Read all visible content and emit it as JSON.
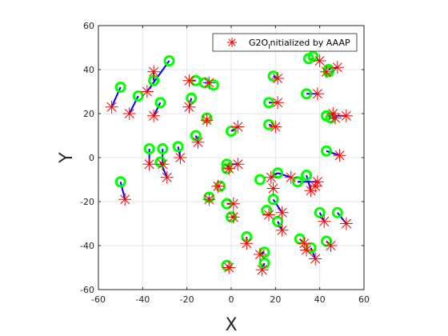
{
  "chart_data": {
    "type": "scatter",
    "xlabel": "X",
    "ylabel": "Y",
    "xlim": [
      -60,
      60
    ],
    "ylim": [
      -60,
      60
    ],
    "xticks": [
      -60,
      -40,
      -20,
      0,
      20,
      40,
      60
    ],
    "yticks": [
      -60,
      -40,
      -20,
      0,
      20,
      40,
      60
    ],
    "grid": true,
    "legend_placement": "top-right",
    "legend": [
      {
        "main": "G2O",
        "sub": "I",
        "rest": "nitialized by AAAP",
        "marker": "red-asterisk"
      }
    ],
    "colors": {
      "initialized": "#ff0000",
      "optimized": "#00ff00",
      "link": "#0000ff",
      "grid": "#e6e6e6",
      "axis": "#262626"
    },
    "series": [
      {
        "name": "G2O Initialized by AAAP",
        "marker": "asterisk",
        "points": [
          [
            -54,
            23
          ],
          [
            -46,
            20
          ],
          [
            -38,
            30
          ],
          [
            -35,
            39
          ],
          [
            -35,
            19
          ],
          [
            -37,
            -3
          ],
          [
            -31,
            -3
          ],
          [
            -29,
            -9
          ],
          [
            -23,
            0
          ],
          [
            -19,
            35
          ],
          [
            -19,
            23
          ],
          [
            -15,
            7
          ],
          [
            -10,
            34
          ],
          [
            -11,
            17
          ],
          [
            -10,
            -19
          ],
          [
            -6,
            -13
          ],
          [
            -1,
            -5
          ],
          [
            3,
            -3
          ],
          [
            3,
            14
          ],
          [
            1,
            -21
          ],
          [
            1,
            -27
          ],
          [
            7,
            -39
          ],
          [
            14,
            -51
          ],
          [
            -1,
            -50
          ],
          [
            13,
            -44
          ],
          [
            21,
            25
          ],
          [
            20,
            14
          ],
          [
            21,
            36
          ],
          [
            18,
            -9
          ],
          [
            27,
            -9
          ],
          [
            23,
            -25
          ],
          [
            23,
            -33
          ],
          [
            36,
            -15
          ],
          [
            38,
            -13
          ],
          [
            39,
            -11
          ],
          [
            39,
            29
          ],
          [
            40,
            44
          ],
          [
            33,
            -39
          ],
          [
            38,
            -46
          ],
          [
            42,
            -29
          ],
          [
            45,
            -40
          ],
          [
            47,
            18
          ],
          [
            46,
            20
          ],
          [
            48,
            41
          ],
          [
            49,
            1
          ],
          [
            52,
            19
          ],
          [
            52,
            -30
          ],
          [
            -48,
            -19
          ],
          [
            19,
            -14
          ],
          [
            34,
            -42
          ],
          [
            43,
            39
          ],
          [
            17,
            -26
          ]
        ]
      },
      {
        "name": "",
        "marker": "circle",
        "points": [
          [
            -50,
            32
          ],
          [
            -42,
            28
          ],
          [
            -37,
            4
          ],
          [
            -35,
            35
          ],
          [
            -32,
            25
          ],
          [
            -31,
            4
          ],
          [
            -28,
            44
          ],
          [
            -32,
            -2
          ],
          [
            -24,
            5
          ],
          [
            -18,
            27
          ],
          [
            -16,
            35
          ],
          [
            -16,
            10
          ],
          [
            -11,
            18
          ],
          [
            -12,
            34
          ],
          [
            -8,
            33
          ],
          [
            -10,
            -18
          ],
          [
            -5,
            -13
          ],
          [
            -2,
            -3
          ],
          [
            -2,
            -21
          ],
          [
            -2,
            -5
          ],
          [
            0,
            12
          ],
          [
            0,
            -27
          ],
          [
            7,
            -36
          ],
          [
            15,
            -43
          ],
          [
            15,
            -48
          ],
          [
            -2,
            -49
          ],
          [
            13,
            -10
          ],
          [
            17,
            25
          ],
          [
            17,
            15
          ],
          [
            19,
            37
          ],
          [
            21,
            -7
          ],
          [
            19,
            -19
          ],
          [
            16,
            -24
          ],
          [
            21,
            -29
          ],
          [
            30,
            -11
          ],
          [
            34,
            -8
          ],
          [
            34,
            29
          ],
          [
            35,
            45
          ],
          [
            31,
            -37
          ],
          [
            36,
            -41
          ],
          [
            40,
            -25
          ],
          [
            43,
            -38
          ],
          [
            43,
            19
          ],
          [
            43,
            3
          ],
          [
            45,
            18
          ],
          [
            44,
            40
          ],
          [
            48,
            -25
          ],
          [
            -50,
            -11
          ],
          [
            44,
            39
          ],
          [
            37,
            46
          ]
        ]
      }
    ],
    "links": [
      [
        [
          -54,
          23
        ],
        [
          -50,
          32
        ]
      ],
      [
        [
          -46,
          20
        ],
        [
          -42,
          28
        ]
      ],
      [
        [
          -38,
          30
        ],
        [
          -28,
          44
        ]
      ],
      [
        [
          -35,
          39
        ],
        [
          -35,
          35
        ]
      ],
      [
        [
          -35,
          19
        ],
        [
          -32,
          25
        ]
      ],
      [
        [
          -37,
          -3
        ],
        [
          -37,
          4
        ]
      ],
      [
        [
          -31,
          -3
        ],
        [
          -31,
          4
        ]
      ],
      [
        [
          -29,
          -9
        ],
        [
          -32,
          -2
        ]
      ],
      [
        [
          -23,
          0
        ],
        [
          -24,
          5
        ]
      ],
      [
        [
          -19,
          35
        ],
        [
          -16,
          35
        ]
      ],
      [
        [
          -19,
          23
        ],
        [
          -18,
          27
        ]
      ],
      [
        [
          -15,
          7
        ],
        [
          -16,
          10
        ]
      ],
      [
        [
          -10,
          34
        ],
        [
          -12,
          34
        ]
      ],
      [
        [
          -11,
          17
        ],
        [
          -11,
          18
        ]
      ],
      [
        [
          -10,
          -19
        ],
        [
          -10,
          -18
        ]
      ],
      [
        [
          -6,
          -13
        ],
        [
          -5,
          -13
        ]
      ],
      [
        [
          -1,
          -5
        ],
        [
          -2,
          -3
        ]
      ],
      [
        [
          3,
          -3
        ],
        [
          -2,
          -3
        ]
      ],
      [
        [
          3,
          14
        ],
        [
          0,
          12
        ]
      ],
      [
        [
          1,
          -21
        ],
        [
          -2,
          -21
        ]
      ],
      [
        [
          1,
          -27
        ],
        [
          0,
          -27
        ]
      ],
      [
        [
          7,
          -39
        ],
        [
          7,
          -36
        ]
      ],
      [
        [
          14,
          -51
        ],
        [
          15,
          -48
        ]
      ],
      [
        [
          -1,
          -50
        ],
        [
          -2,
          -49
        ]
      ],
      [
        [
          13,
          -44
        ],
        [
          15,
          -43
        ]
      ],
      [
        [
          21,
          25
        ],
        [
          17,
          25
        ]
      ],
      [
        [
          20,
          14
        ],
        [
          17,
          15
        ]
      ],
      [
        [
          21,
          36
        ],
        [
          19,
          37
        ]
      ],
      [
        [
          18,
          -9
        ],
        [
          21,
          -7
        ]
      ],
      [
        [
          27,
          -9
        ],
        [
          21,
          -7
        ]
      ],
      [
        [
          23,
          -25
        ],
        [
          19,
          -19
        ]
      ],
      [
        [
          23,
          -33
        ],
        [
          21,
          -29
        ]
      ],
      [
        [
          36,
          -15
        ],
        [
          34,
          -8
        ]
      ],
      [
        [
          39,
          -11
        ],
        [
          30,
          -11
        ]
      ],
      [
        [
          39,
          29
        ],
        [
          34,
          29
        ]
      ],
      [
        [
          40,
          44
        ],
        [
          35,
          45
        ]
      ],
      [
        [
          33,
          -39
        ],
        [
          31,
          -37
        ]
      ],
      [
        [
          38,
          -46
        ],
        [
          36,
          -41
        ]
      ],
      [
        [
          42,
          -29
        ],
        [
          40,
          -25
        ]
      ],
      [
        [
          45,
          -40
        ],
        [
          43,
          -38
        ]
      ],
      [
        [
          47,
          18
        ],
        [
          45,
          18
        ]
      ],
      [
        [
          48,
          41
        ],
        [
          44,
          40
        ]
      ],
      [
        [
          49,
          1
        ],
        [
          43,
          3
        ]
      ],
      [
        [
          52,
          -30
        ],
        [
          48,
          -25
        ]
      ],
      [
        [
          -48,
          -19
        ],
        [
          -50,
          -11
        ]
      ],
      [
        [
          52,
          19
        ],
        [
          43,
          19
        ]
      ]
    ]
  }
}
